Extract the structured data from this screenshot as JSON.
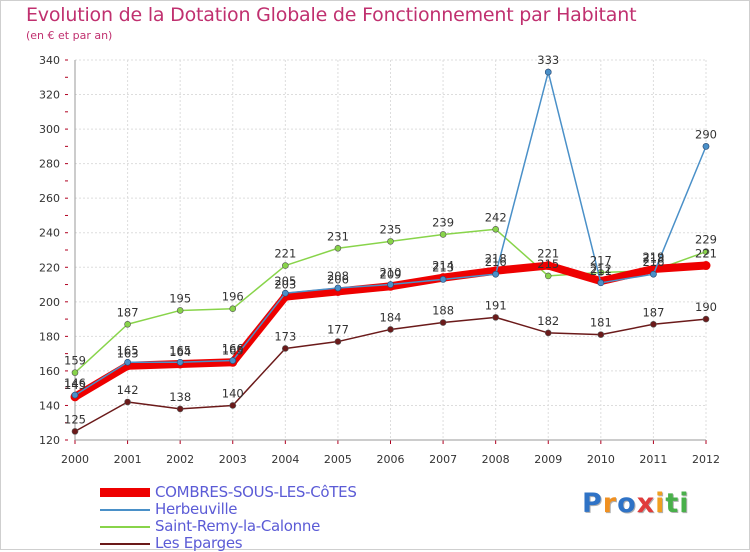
{
  "chart_data": {
    "type": "line",
    "title": "Evolution de la Dotation Globale de Fonctionnement par Habitant",
    "subtitle": "(en € et par an)",
    "x": [
      "2000",
      "2001",
      "2002",
      "2003",
      "2004",
      "2005",
      "2006",
      "2007",
      "2008",
      "2009",
      "2010",
      "2011",
      "2012"
    ],
    "ylim": [
      120,
      340
    ],
    "yticks": [
      "120",
      "140",
      "160",
      "180",
      "200",
      "220",
      "240",
      "260",
      "280",
      "300",
      "320",
      "340"
    ],
    "grid": true,
    "legend_position": "bottom-left",
    "series": [
      {
        "name": "COMBRES-SOUS-LES-CôTES",
        "color": "#ee0000",
        "values": [
          145,
          163,
          164,
          165,
          203,
          206,
          209,
          214,
          218,
          221,
          212,
          219,
          221
        ],
        "labels": [
          "145",
          "163",
          "164",
          "165",
          "203",
          "206",
          "209",
          "214",
          "218",
          "221",
          "212",
          "219",
          "221"
        ]
      },
      {
        "name": "Herbeuville",
        "color": "#4a90c8",
        "values": [
          146,
          165,
          165,
          166,
          205,
          208,
          210,
          213,
          216,
          333,
          211,
          216,
          290
        ],
        "labels": [
          "146",
          "165",
          "165",
          "166",
          "205",
          "208",
          "210",
          "213",
          "216",
          "333",
          "211",
          "216",
          "290"
        ]
      },
      {
        "name": "Saint-Remy-la-Calonne",
        "color": "#88d44a",
        "values": [
          159,
          187,
          195,
          196,
          221,
          231,
          235,
          239,
          242,
          215,
          217,
          218,
          229
        ],
        "labels": [
          "159",
          "187",
          "195",
          "196",
          "221",
          "231",
          "235",
          "239",
          "242",
          "215",
          "217",
          "218",
          "229"
        ]
      },
      {
        "name": "Les Eparges",
        "color": "#6b1a1a",
        "values": [
          125,
          142,
          138,
          140,
          173,
          177,
          184,
          188,
          191,
          182,
          181,
          187,
          190
        ],
        "labels": [
          "125",
          "142",
          "138",
          "140",
          "173",
          "177",
          "184",
          "188",
          "191",
          "182",
          "181",
          "187",
          "190"
        ]
      }
    ]
  },
  "brand": {
    "letters": [
      "P",
      "r",
      "o",
      "x",
      "i",
      "t",
      "i"
    ],
    "colors": [
      "#2f73c6",
      "#f09020",
      "#2f73c6",
      "#e03c3c",
      "#f0a020",
      "#49b04a",
      "#49b04a"
    ]
  }
}
